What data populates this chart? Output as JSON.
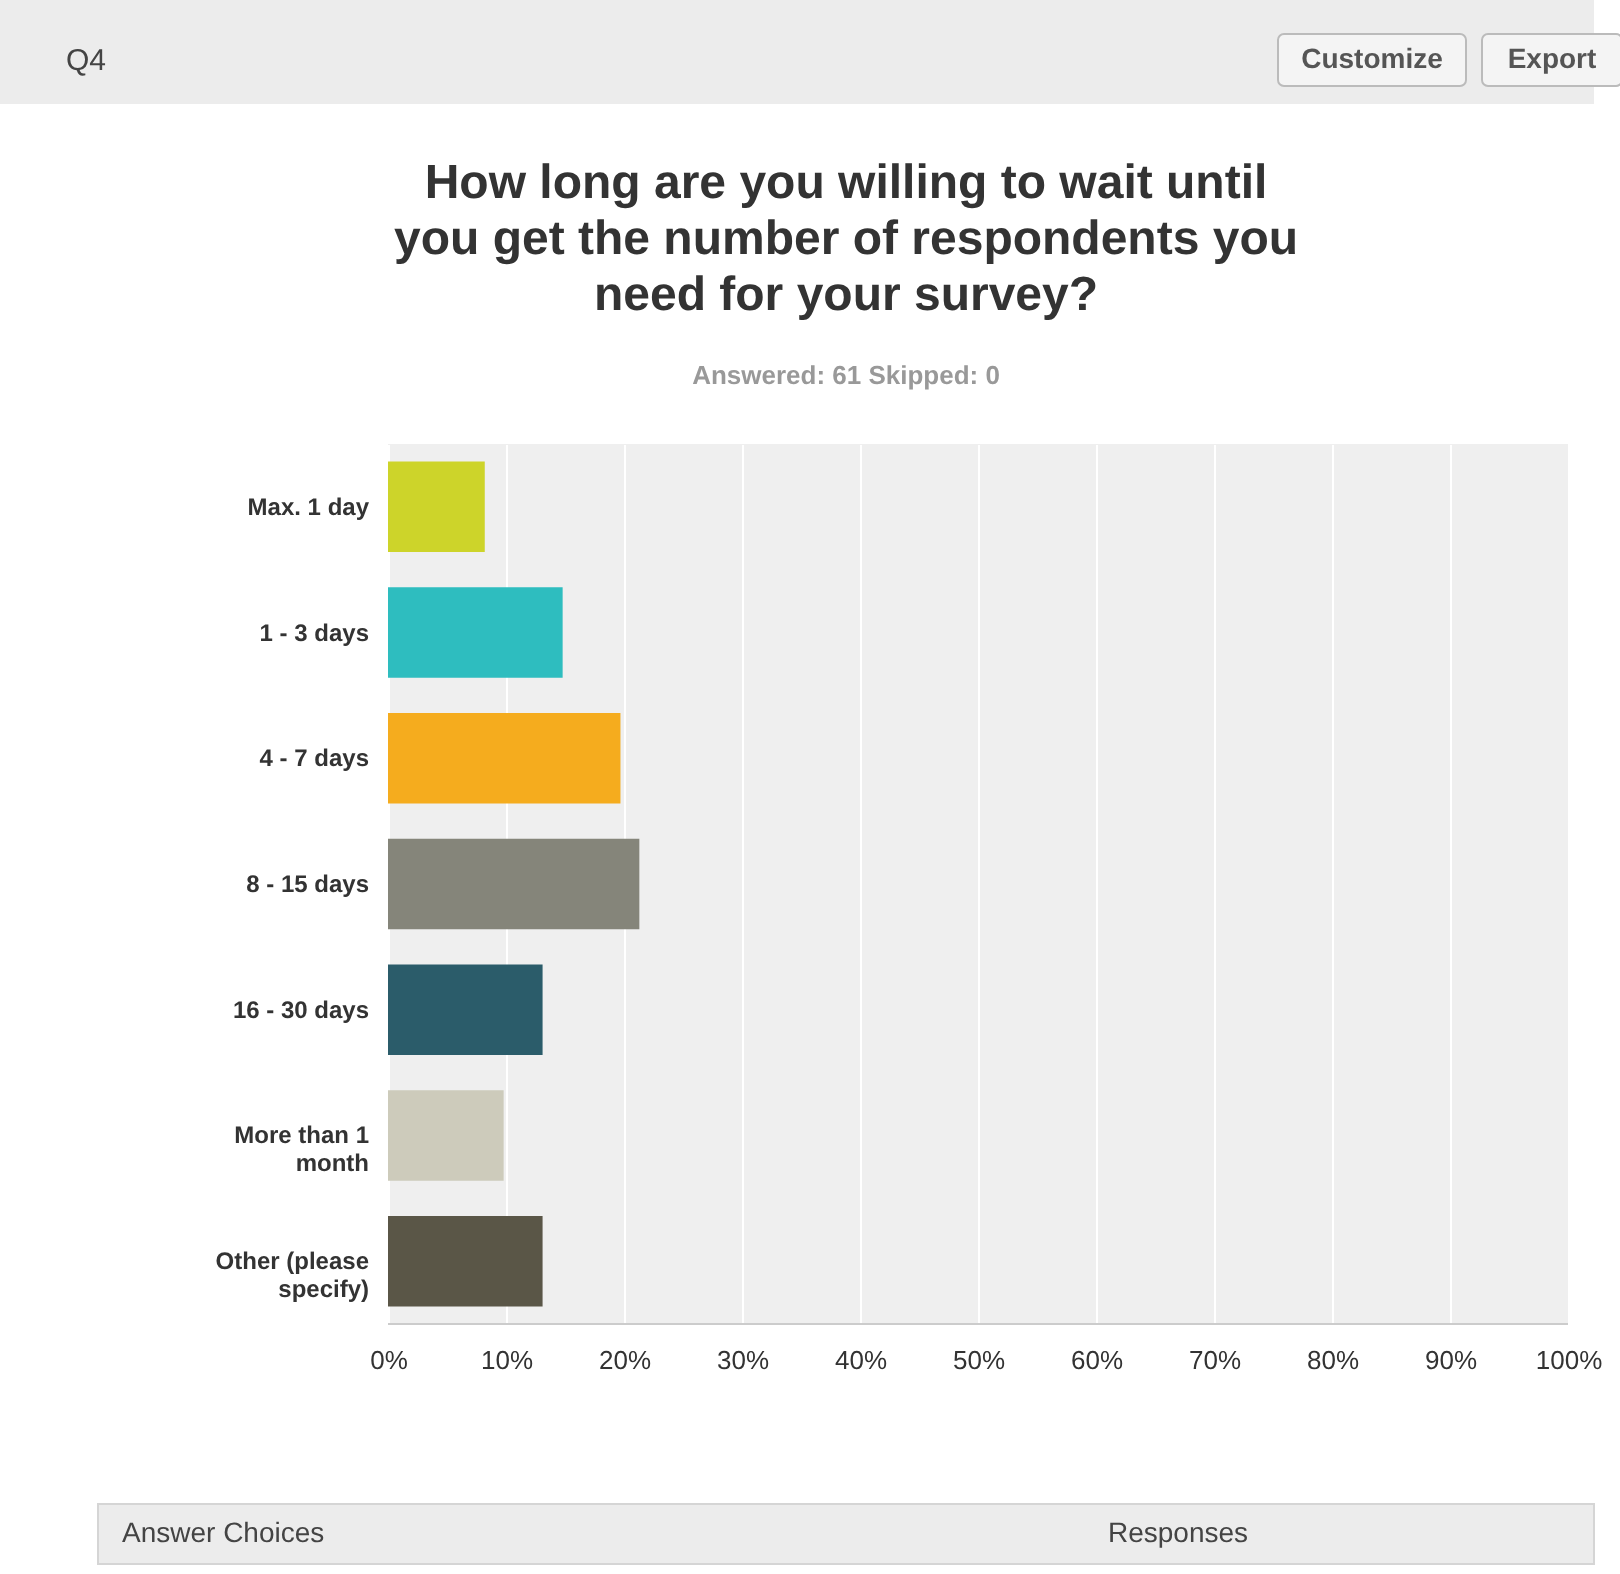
{
  "chart_data": {
    "type": "bar",
    "orientation": "horizontal",
    "title": "How long are you willing to wait until you get the number of respondents you need for your survey?",
    "subtitle": "Answered: 61    Skipped: 0",
    "categories": [
      "Max. 1 day",
      "1 - 3 days",
      "4 - 7 days",
      "8 - 15 days",
      "16 - 30 days",
      "More than 1 month",
      "Other (please specify)"
    ],
    "values": [
      8.2,
      14.8,
      19.7,
      21.3,
      13.1,
      9.8,
      13.1
    ],
    "colors": [
      "#cdd42a",
      "#2ebdbf",
      "#f5ac1e",
      "#85857a",
      "#2b5c6a",
      "#cdcbbb",
      "#5a5647"
    ],
    "xlim": [
      0,
      100
    ],
    "xticks": [
      {
        "value": 0,
        "label": "0%"
      },
      {
        "value": 10,
        "label": "10%"
      },
      {
        "value": 20,
        "label": "20%"
      },
      {
        "value": 30,
        "label": "30%"
      },
      {
        "value": 40,
        "label": "40%"
      },
      {
        "value": 50,
        "label": "50%"
      },
      {
        "value": 60,
        "label": "60%"
      },
      {
        "value": 70,
        "label": "70%"
      },
      {
        "value": 80,
        "label": "80%"
      },
      {
        "value": 90,
        "label": "90%"
      },
      {
        "value": 100,
        "label": "100%"
      }
    ],
    "grid": "x",
    "annotations": [
      "Q4",
      "Customize",
      "Export",
      "Answer Choices",
      "Responses"
    ]
  }
}
